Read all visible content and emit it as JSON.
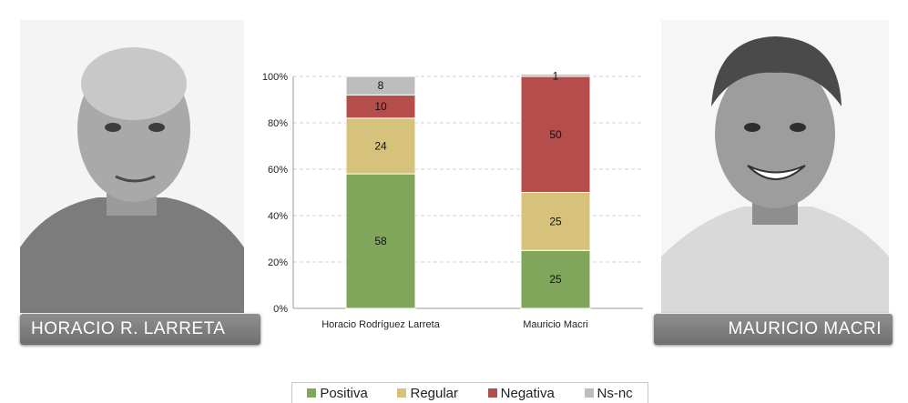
{
  "candidates": {
    "left_name": "HORACIO R. LARRETA",
    "right_name": "MAURICIO MACRI"
  },
  "chart_data": {
    "type": "bar",
    "stacked": true,
    "categories": [
      "Horacio Rodríguez Larreta",
      "Mauricio Macri"
    ],
    "series": [
      {
        "name": "Positiva",
        "color": "#7fa65a",
        "values": [
          58,
          25
        ]
      },
      {
        "name": "Regular",
        "color": "#d6c27a",
        "values": [
          24,
          25
        ]
      },
      {
        "name": "Negativa",
        "color": "#b54d4d",
        "values": [
          10,
          50
        ]
      },
      {
        "name": "Ns-nc",
        "color": "#bdbdbd",
        "values": [
          8,
          1
        ]
      }
    ],
    "yticks": [
      "0%",
      "20%",
      "40%",
      "60%",
      "80%",
      "100%"
    ],
    "ylim": [
      0,
      100
    ],
    "grid": true,
    "legend_position": "bottom"
  }
}
